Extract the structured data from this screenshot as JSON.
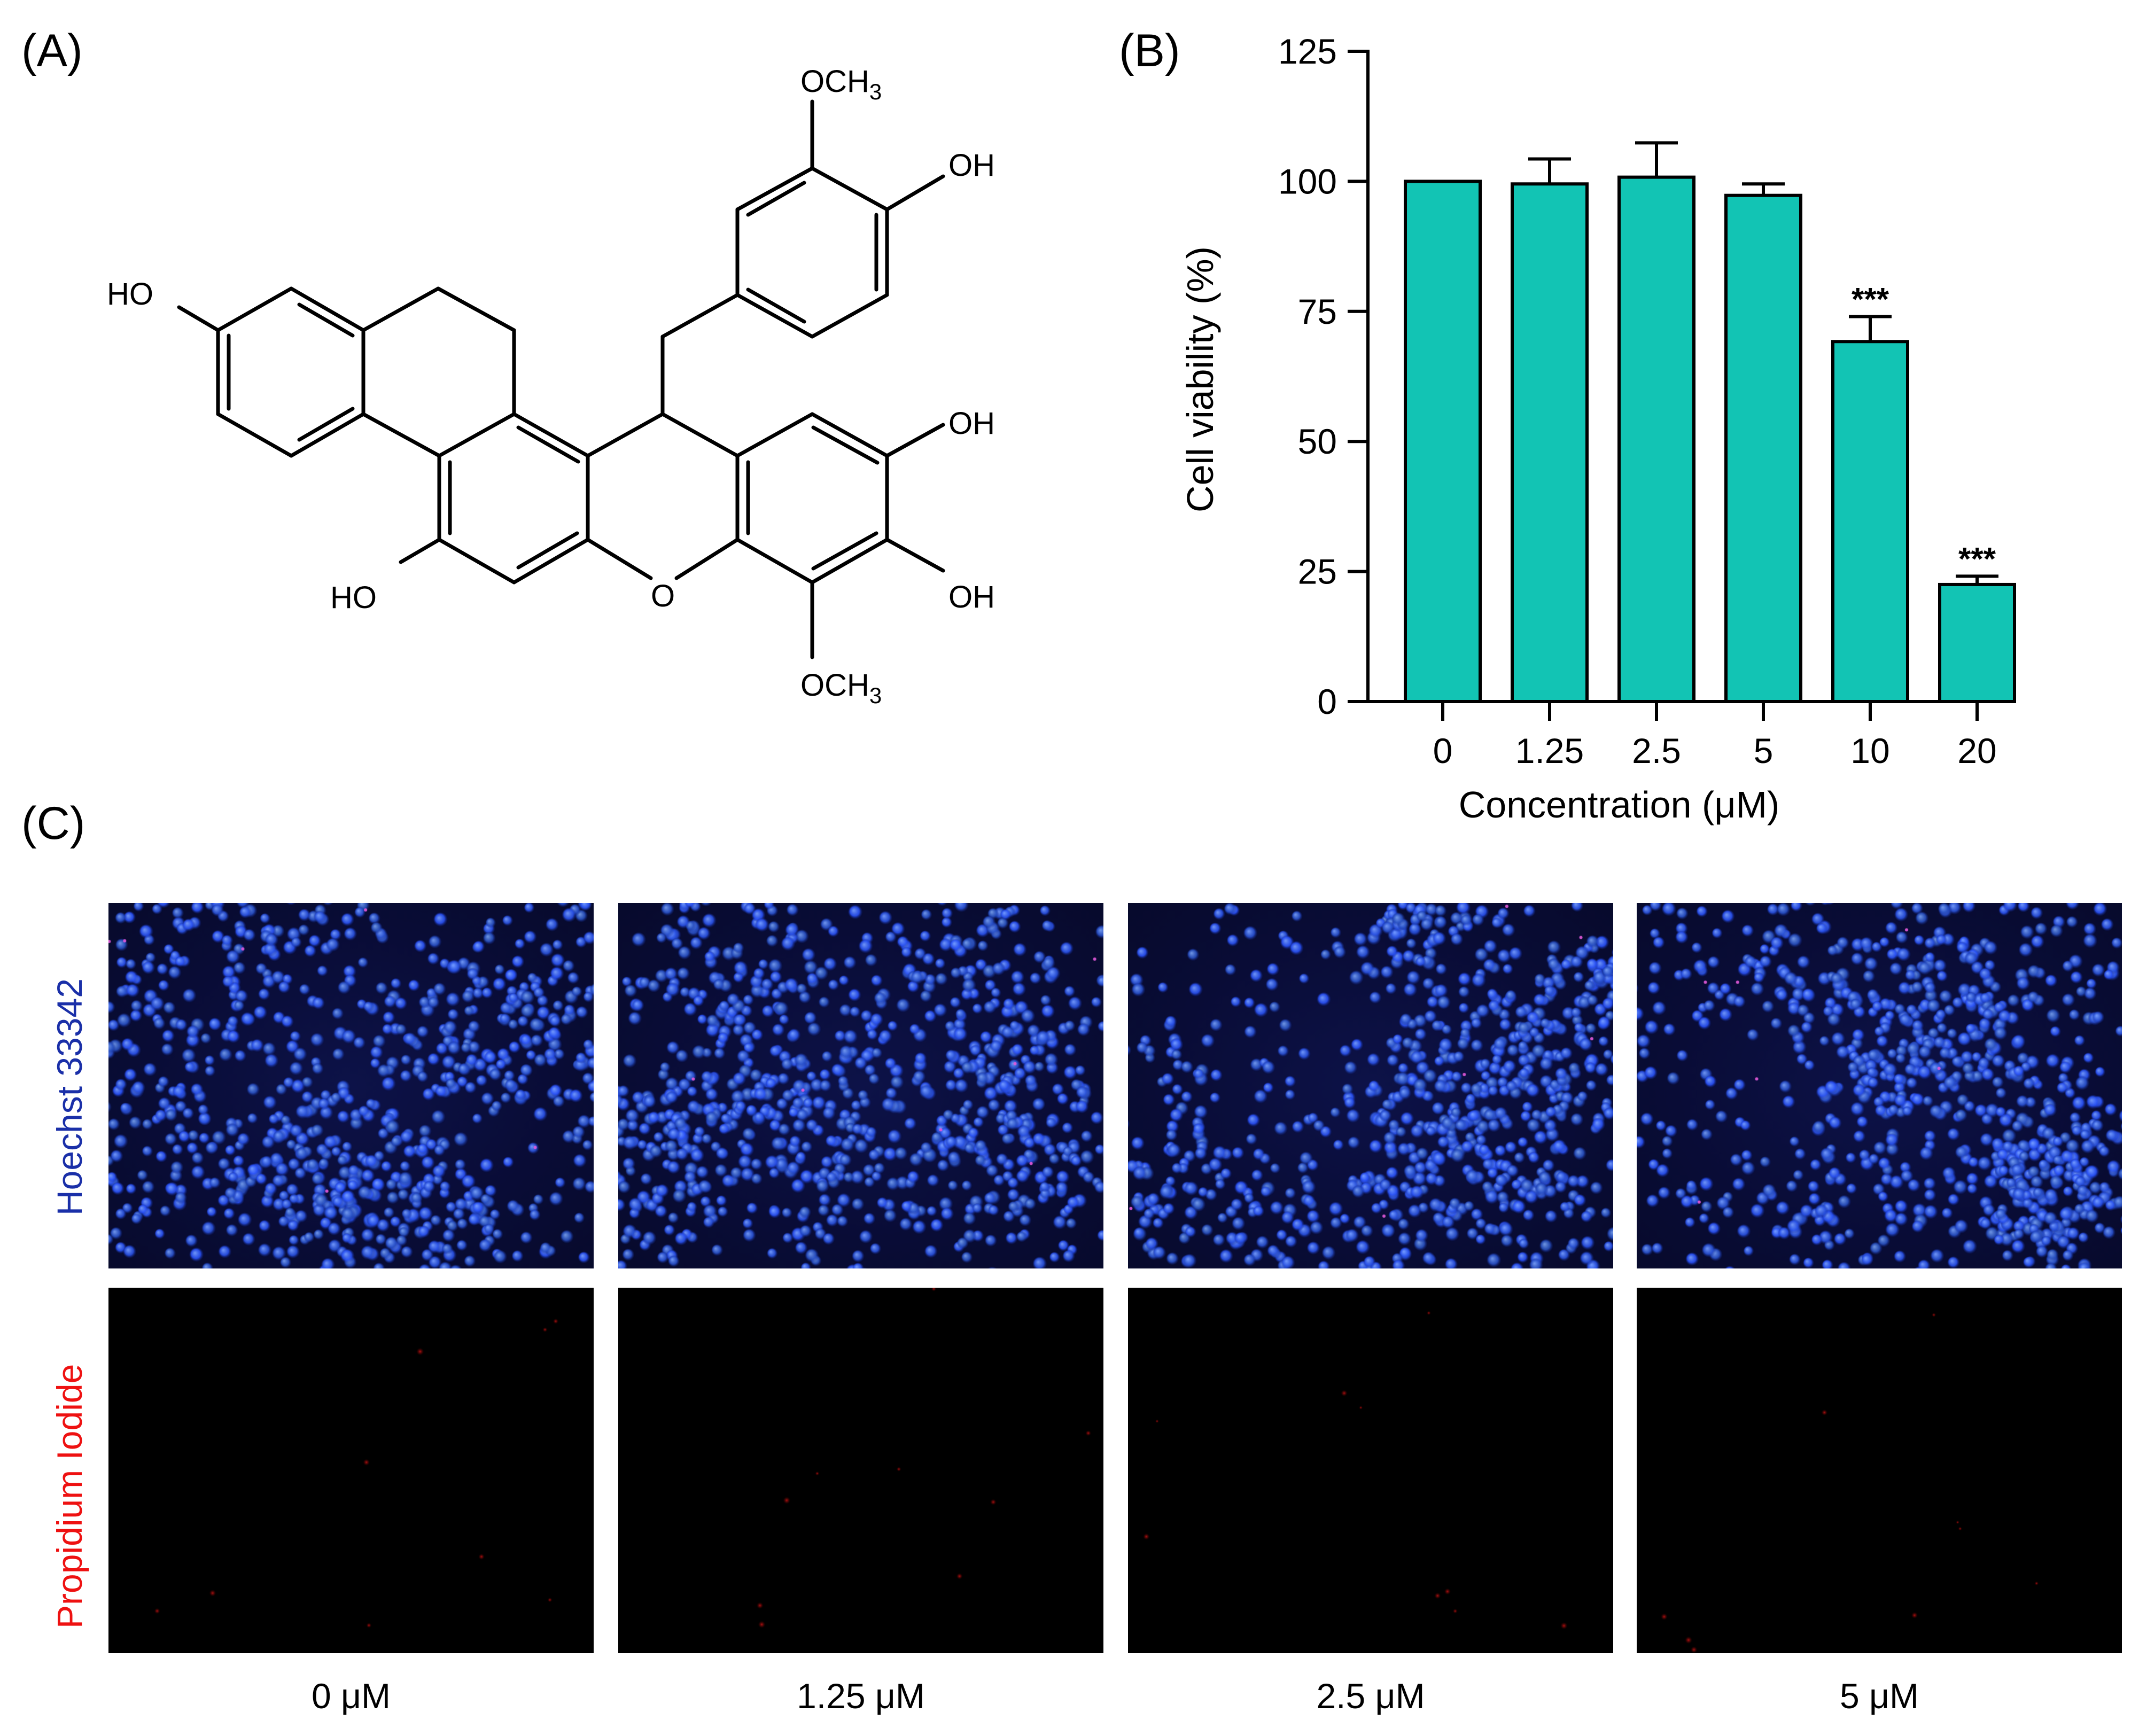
{
  "panels": {
    "a": "(A)",
    "b": "(B)",
    "c": "(C)"
  },
  "molecule": {
    "substituents": {
      "ho_top_left": "HO",
      "ho_bottom_left": "HO",
      "oh_top_right": "OH",
      "oh_right_upper": "OH",
      "oh_right_lower": "OH",
      "ring_o": "O",
      "och3_top": "OCH3",
      "och3_bottom": "OCH3"
    }
  },
  "chart_data": {
    "type": "bar",
    "categories": [
      "0",
      "1.25",
      "2.5",
      "5",
      "10",
      "20"
    ],
    "values": [
      100,
      99.5,
      100.8,
      97.3,
      69.2,
      22.5
    ],
    "errors": [
      0,
      4.8,
      6.6,
      2.2,
      4.8,
      1.6
    ],
    "annotations": [
      "",
      "",
      "",
      "",
      "***",
      "***"
    ],
    "xlabel": "Concentration (μM)",
    "ylabel": "Cell viability (%)",
    "ylim": [
      0,
      125
    ],
    "yticks": [
      0,
      25,
      50,
      75,
      100,
      125
    ],
    "bar_color": "#12c4b4",
    "grid": false
  },
  "images": {
    "rows": [
      "Hoechst 33342",
      "Propidium Iodide"
    ],
    "row_colors": [
      "#1a2fa8",
      "#ee1111"
    ],
    "concentrations": [
      "0 μM",
      "1.25 μM",
      "2.5 μM",
      "5 μM"
    ]
  }
}
